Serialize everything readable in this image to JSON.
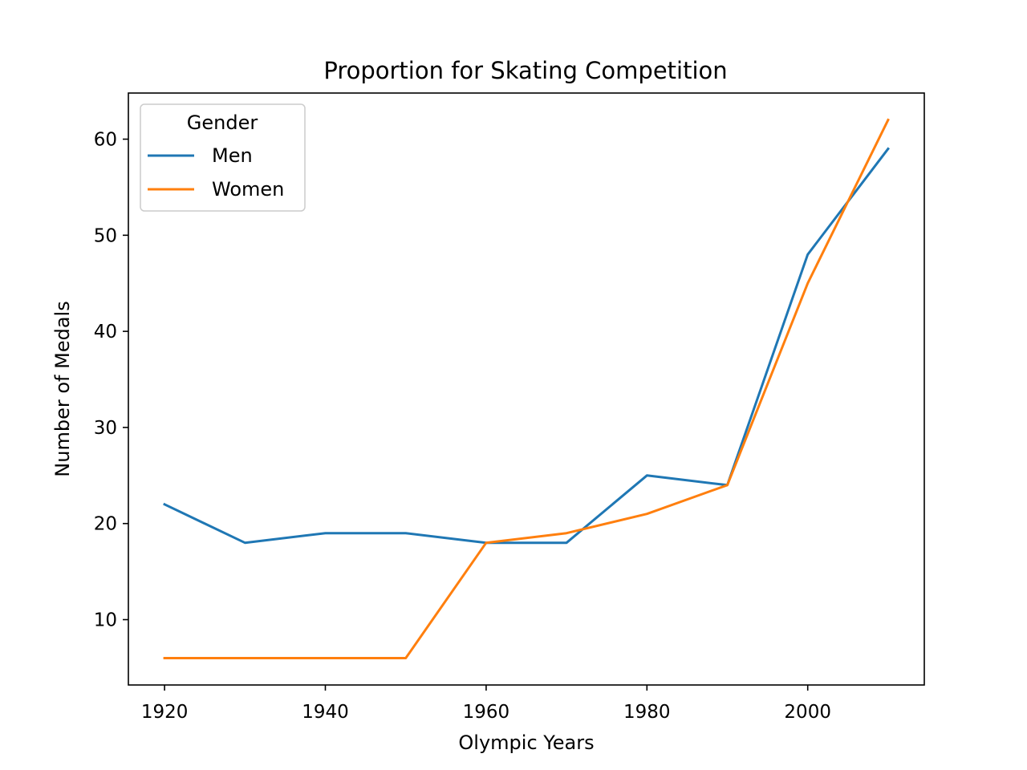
{
  "chart_data": {
    "type": "line",
    "title": "Proportion for Skating Competition",
    "xlabel": "Olympic Years",
    "ylabel": "Number of Medals",
    "x": [
      1920,
      1930,
      1940,
      1950,
      1960,
      1970,
      1980,
      1990,
      2000,
      2010
    ],
    "xlim": [
      1915.5,
      2014.5
    ],
    "ylim": [
      3.2,
      64.8
    ],
    "xticks": [
      1920,
      1940,
      1960,
      1980,
      2000
    ],
    "yticks": [
      10,
      20,
      30,
      40,
      50,
      60
    ],
    "grid": false,
    "legend": {
      "title": "Gender",
      "placement": "upper-left"
    },
    "series": [
      {
        "name": "Men",
        "color": "#1f77b4",
        "values": [
          22,
          18,
          19,
          19,
          18,
          18,
          25,
          24,
          48,
          59
        ]
      },
      {
        "name": "Women",
        "color": "#ff7f0e",
        "values": [
          6,
          6,
          6,
          6,
          18,
          19,
          21,
          24,
          45,
          62
        ]
      }
    ]
  }
}
